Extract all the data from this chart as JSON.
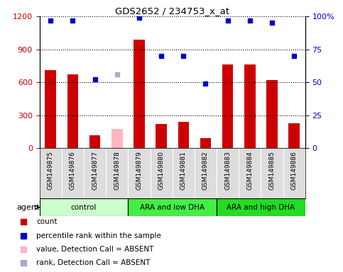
{
  "title": "GDS2652 / 234753_x_at",
  "samples": [
    "GSM149875",
    "GSM149876",
    "GSM149877",
    "GSM149878",
    "GSM149879",
    "GSM149880",
    "GSM149881",
    "GSM149882",
    "GSM149883",
    "GSM149884",
    "GSM149885",
    "GSM149886"
  ],
  "counts": [
    710,
    675,
    120,
    0,
    990,
    220,
    240,
    90,
    760,
    760,
    620,
    230
  ],
  "absent_count_idx": [
    3
  ],
  "absent_count_val": [
    175
  ],
  "percentile_ranks": [
    97,
    97,
    52,
    56,
    99,
    70,
    70,
    49,
    97,
    97,
    95,
    70
  ],
  "absent_rank_idx": [
    3
  ],
  "absent_rank_val": [
    56
  ],
  "bar_color": "#cc0000",
  "absent_bar_color": "#ffb6c1",
  "dot_color": "#0000cc",
  "absent_dot_color": "#aaaacc",
  "ylim_left": [
    0,
    1200
  ],
  "ylim_right": [
    0,
    100
  ],
  "yticks_left": [
    0,
    300,
    600,
    900,
    1200
  ],
  "yticks_right": [
    0,
    25,
    50,
    75,
    100
  ],
  "yticklabels_right": [
    "0",
    "25",
    "50",
    "75",
    "100%"
  ],
  "groups": [
    {
      "label": "control",
      "start": 0,
      "end": 4,
      "color": "#ccffcc"
    },
    {
      "label": "ARA and low DHA",
      "start": 4,
      "end": 8,
      "color": "#44ee44"
    },
    {
      "label": "ARA and high DHA",
      "start": 8,
      "end": 12,
      "color": "#22dd22"
    }
  ],
  "agent_label": "agent",
  "bar_width": 0.5,
  "grid_style": "dotted",
  "legend_items": [
    {
      "color": "#cc0000",
      "marker": "s",
      "label": "count"
    },
    {
      "color": "#0000cc",
      "marker": "s",
      "label": "percentile rank within the sample"
    },
    {
      "color": "#ffb6c1",
      "marker": "s",
      "label": "value, Detection Call = ABSENT"
    },
    {
      "color": "#aaaacc",
      "marker": "s",
      "label": "rank, Detection Call = ABSENT"
    }
  ]
}
